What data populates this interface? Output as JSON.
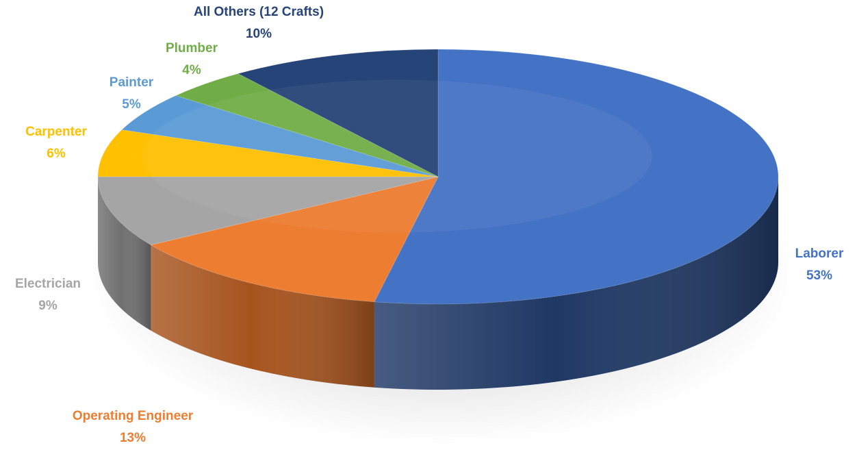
{
  "chart_data": {
    "type": "pie",
    "style": "3d",
    "slices": [
      {
        "label": "Laborer",
        "value": 53,
        "value_label": "53%",
        "color": "#4472C4",
        "side_color": "#1F3864",
        "label_color": "#4472C4"
      },
      {
        "label": "Operating Engineer",
        "value": 13,
        "value_label": "13%",
        "color": "#ED7D31",
        "side_color": "#A6541E",
        "label_color": "#ED7D31"
      },
      {
        "label": "Electrician",
        "value": 9,
        "value_label": "9%",
        "color": "#A5A5A5",
        "side_color": "#707070",
        "label_color": "#A5A5A5"
      },
      {
        "label": "Carpenter",
        "value": 6,
        "value_label": "6%",
        "color": "#FFC000",
        "side_color": "#B38700",
        "label_color": "#FFC000"
      },
      {
        "label": "Painter",
        "value": 5,
        "value_label": "5%",
        "color": "#5B9BD5",
        "side_color": "#3A6E9E",
        "label_color": "#5B9BD5"
      },
      {
        "label": "Plumber",
        "value": 4,
        "value_label": "4%",
        "color": "#70AD47",
        "side_color": "#4E7A31",
        "label_color": "#70AD47"
      },
      {
        "label": "All Others (12 Crafts)",
        "value": 10,
        "value_label": "10%",
        "color": "#264478",
        "side_color": "#17294A",
        "label_color": "#264478"
      }
    ]
  }
}
